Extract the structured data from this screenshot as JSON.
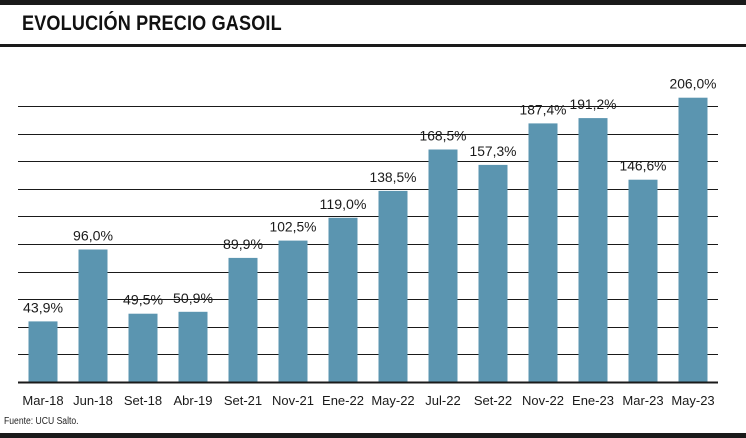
{
  "title": "EVOLUCIÓN PRECIO GASOIL",
  "source": "Fuente: UCU Salto.",
  "chart_data": {
    "type": "bar",
    "title": "EVOLUCIÓN PRECIO GASOIL",
    "xlabel": "",
    "ylabel": "",
    "categories": [
      "Mar-18",
      "Jun-18",
      "Set-18",
      "Abr-19",
      "Set-21",
      "Nov-21",
      "Ene-22",
      "May-22",
      "Jul-22",
      "Set-22",
      "Nov-22",
      "Ene-23",
      "Mar-23",
      "May-23"
    ],
    "values": [
      43.9,
      96.0,
      49.5,
      50.9,
      89.9,
      102.5,
      119.0,
      138.5,
      168.5,
      157.3,
      187.4,
      191.2,
      146.6,
      206.0
    ],
    "value_labels": [
      "43,9%",
      "96,0%",
      "49,5%",
      "50,9%",
      "89,9%",
      "102,5%",
      "119,0%",
      "138,5%",
      "168,5%",
      "157,3%",
      "187,4%",
      "191,2%",
      "146,6%",
      "206,0%"
    ],
    "ylim": [
      0,
      200
    ],
    "gridlines": [
      20,
      40,
      60,
      80,
      100,
      120,
      140,
      160,
      180,
      200
    ],
    "grid": true,
    "legend": "none",
    "bar_color": "#5b95b0",
    "grid_color": "#1a1a1a"
  }
}
